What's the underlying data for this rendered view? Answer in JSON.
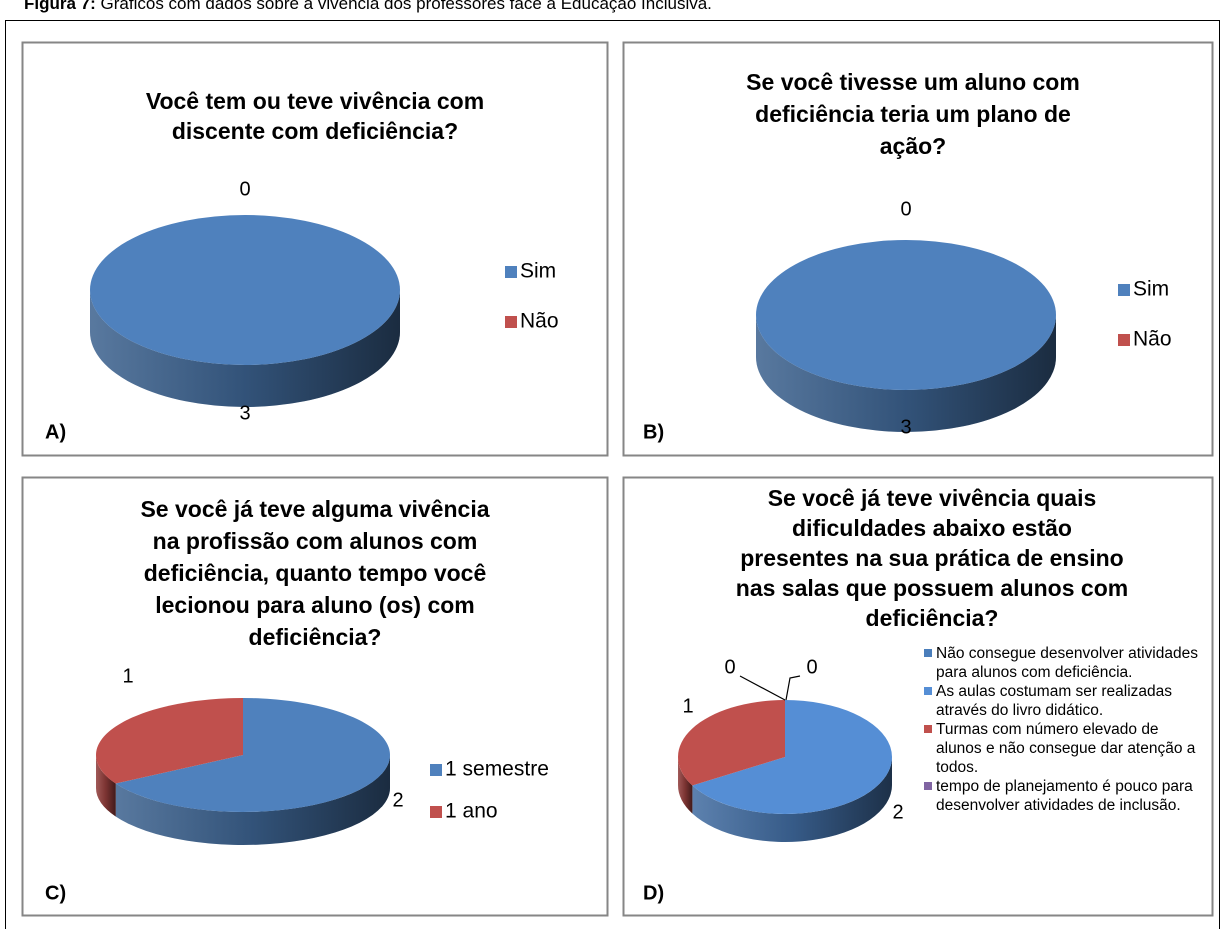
{
  "caption": {
    "label": "Figura 7:",
    "text": "Gráficos com dados sobre a vivência dos professores face à Educação Inclusiva."
  },
  "chart_data": [
    {
      "type": "pie3d",
      "panel_label": "A)",
      "title": [
        "Você tem ou teve vivência com",
        "discente com deficiência?"
      ],
      "categories": [
        "Sim",
        "Não"
      ],
      "values": [
        3,
        0
      ],
      "colors": [
        "#4f81bd",
        "#c0504d"
      ]
    },
    {
      "type": "pie3d",
      "panel_label": "B)",
      "title": [
        "Se você tivesse um aluno com",
        "deficiência teria um plano de",
        "ação?"
      ],
      "categories": [
        "Sim",
        "Não"
      ],
      "values": [
        3,
        0
      ],
      "colors": [
        "#4f81bd",
        "#c0504d"
      ]
    },
    {
      "type": "pie3d",
      "panel_label": "C)",
      "title": [
        "Se você já teve alguma vivência",
        "na profissão com alunos com",
        "deficiência, quanto tempo você",
        "lecionou para aluno (os) com",
        "deficiência?"
      ],
      "categories": [
        "1 semestre",
        "1 ano"
      ],
      "values": [
        2,
        1
      ],
      "colors": [
        "#4f81bd",
        "#c0504d"
      ]
    },
    {
      "type": "pie3d",
      "panel_label": "D)",
      "title": [
        "Se você já teve vivência quais",
        "dificuldades abaixo estão",
        "presentes na sua prática de ensino",
        "nas salas que possuem alunos com",
        "deficiência?"
      ],
      "categories": [
        "Não consegue desenvolver atividades para alunos com deficiência.",
        "As aulas costumam ser realizadas através do livro didático.",
        "Turmas com número elevado de alunos e não consegue dar atenção a todos.",
        "tempo de planejamento é pouco para desenvolver atividades de inclusão."
      ],
      "values": [
        0,
        2,
        1,
        0
      ],
      "colors": [
        "#4a7ebb",
        "#558ed5",
        "#c0504d",
        "#8064a2"
      ]
    }
  ]
}
